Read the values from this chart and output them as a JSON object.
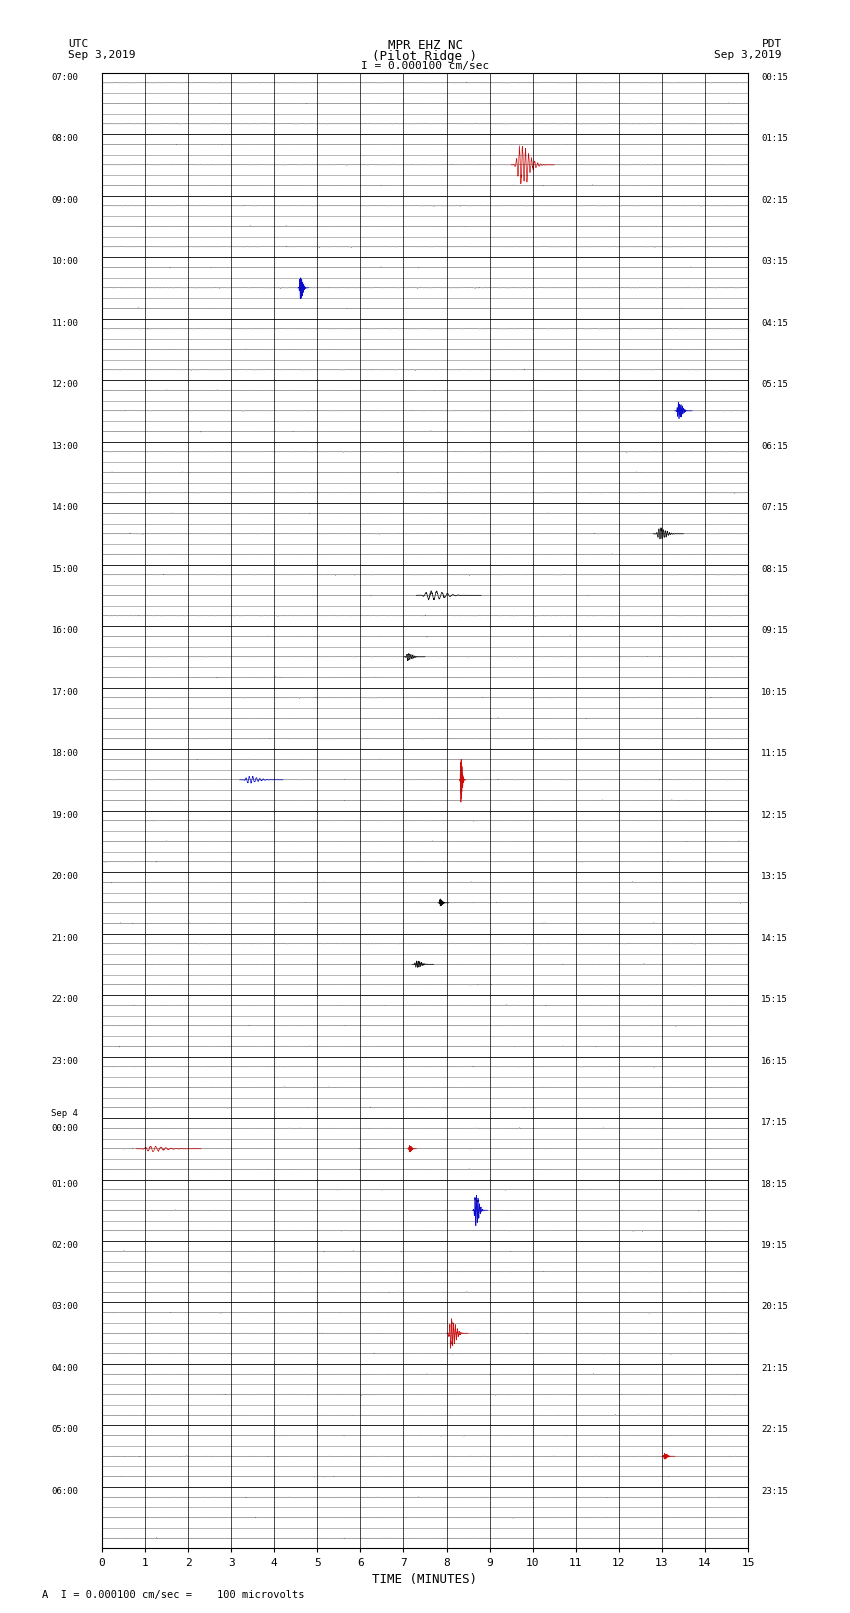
{
  "title_line1": "MPR EHZ NC",
  "title_line2": "(Pilot Ridge )",
  "scale_label": "I = 0.000100 cm/sec",
  "utc_label": "UTC\nSep 3,2019",
  "pdt_label": "PDT\nSep 3,2019",
  "bottom_label": "A  I = 0.000100 cm/sec =    100 microvolts",
  "xlabel": "TIME (MINUTES)",
  "left_times": [
    "07:00",
    "08:00",
    "09:00",
    "10:00",
    "11:00",
    "12:00",
    "13:00",
    "14:00",
    "15:00",
    "16:00",
    "17:00",
    "18:00",
    "19:00",
    "20:00",
    "21:00",
    "22:00",
    "23:00",
    "Sep 4\n00:00",
    "01:00",
    "02:00",
    "03:00",
    "04:00",
    "05:00",
    "06:00"
  ],
  "right_times": [
    "00:15",
    "01:15",
    "02:15",
    "03:15",
    "04:15",
    "05:15",
    "06:15",
    "07:15",
    "08:15",
    "09:15",
    "10:15",
    "11:15",
    "12:15",
    "13:15",
    "14:15",
    "15:15",
    "16:15",
    "17:15",
    "18:15",
    "19:15",
    "20:15",
    "21:15",
    "22:15",
    "23:15"
  ],
  "n_rows": 24,
  "minutes_per_row": 15,
  "bg_color": "#ffffff",
  "grid_color": "#000000",
  "sublines_per_row": 3,
  "noise_amp": 0.006,
  "events": [
    {
      "row": 1,
      "minute": 9.5,
      "duration": 1.0,
      "amplitude": 0.28,
      "color": "#cc0000",
      "spiky": true
    },
    {
      "row": 3,
      "minute": 4.55,
      "duration": 0.25,
      "amplitude": 0.18,
      "color": "#0000cc",
      "spiky": true
    },
    {
      "row": 5,
      "minute": 13.3,
      "duration": 0.4,
      "amplitude": 0.12,
      "color": "#0000cc",
      "spiky": true
    },
    {
      "row": 7,
      "minute": 12.8,
      "duration": 0.7,
      "amplitude": 0.08,
      "color": "#000000",
      "spiky": true
    },
    {
      "row": 8,
      "minute": 7.3,
      "duration": 1.5,
      "amplitude": 0.07,
      "color": "#000000",
      "spiky": true
    },
    {
      "row": 9,
      "minute": 7.0,
      "duration": 0.5,
      "amplitude": 0.05,
      "color": "#000000",
      "spiky": true
    },
    {
      "row": 11,
      "minute": 8.3,
      "duration": 0.15,
      "amplitude": 0.28,
      "color": "#cc0000",
      "spiky": true
    },
    {
      "row": 11,
      "minute": 3.2,
      "duration": 1.0,
      "amplitude": 0.05,
      "color": "#0000cc",
      "spiky": true
    },
    {
      "row": 13,
      "minute": 7.8,
      "duration": 0.25,
      "amplitude": 0.05,
      "color": "#000000",
      "spiky": true
    },
    {
      "row": 14,
      "minute": 7.2,
      "duration": 0.5,
      "amplitude": 0.05,
      "color": "#000000",
      "spiky": true
    },
    {
      "row": 17,
      "minute": 0.8,
      "duration": 1.5,
      "amplitude": 0.04,
      "color": "#cc0000",
      "spiky": true
    },
    {
      "row": 17,
      "minute": 7.1,
      "duration": 0.2,
      "amplitude": 0.05,
      "color": "#cc0000",
      "spiky": true
    },
    {
      "row": 18,
      "minute": 8.6,
      "duration": 0.35,
      "amplitude": 0.22,
      "color": "#0000cc",
      "spiky": true
    },
    {
      "row": 20,
      "minute": 8.0,
      "duration": 0.5,
      "amplitude": 0.22,
      "color": "#cc0000",
      "spiky": true
    },
    {
      "row": 22,
      "minute": 13.0,
      "duration": 0.3,
      "amplitude": 0.04,
      "color": "#cc0000",
      "spiky": true
    }
  ]
}
